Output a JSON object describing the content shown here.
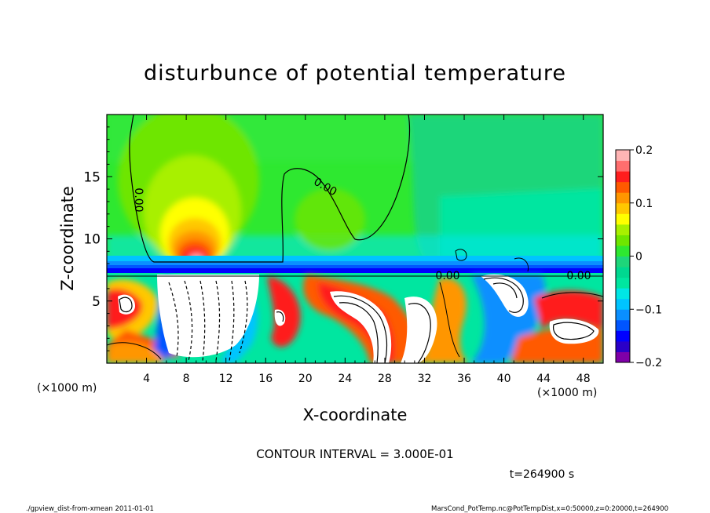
{
  "chart_data": {
    "type": "heatmap",
    "title": "disturbunce of potential temperature",
    "xlabel": "X-coordinate",
    "ylabel": "Z-coordinate",
    "x_unit_left": "(×1000 m)",
    "x_unit_right": "(×1000 m)",
    "xlim": [
      0,
      50
    ],
    "ylim": [
      0,
      20
    ],
    "x_ticks": [
      4,
      8,
      12,
      16,
      20,
      24,
      28,
      32,
      36,
      40,
      44,
      48
    ],
    "y_ticks": [
      5,
      10,
      15
    ],
    "colorbar": {
      "ticks": [
        -0.2,
        -0.1,
        0,
        0.1,
        0.2
      ],
      "tick_labels": [
        "−0.2",
        "−0.1",
        "0",
        "0.1",
        "0.2"
      ],
      "range": [
        -0.2,
        0.2
      ],
      "colors": [
        "#7f00a8",
        "#2a00c8",
        "#0000ff",
        "#0055ff",
        "#0a8fff",
        "#00c4ff",
        "#00e6e6",
        "#00e6a0",
        "#00d890",
        "#1ed67a",
        "#2ee830",
        "#6ee600",
        "#a8f000",
        "#ffff00",
        "#ffc800",
        "#ff9600",
        "#ff5a00",
        "#ff1e1e",
        "#ff6e6e",
        "#ffb4b4"
      ]
    },
    "contour_labels": [
      {
        "text": "0.00",
        "x": 3.0,
        "z": 13.0,
        "rotate": 90
      },
      {
        "text": "0.00",
        "x": 23.0,
        "z": 14.5,
        "rotate": 30
      },
      {
        "text": "0.00",
        "x": 34.6,
        "z": 7.2,
        "rotate": 0
      },
      {
        "text": "0.00",
        "x": 47.2,
        "z": 7.2,
        "rotate": 0
      }
    ],
    "contour_interval": "CONTOUR INTERVAL = 3.000E-01",
    "time_label": "t=264900 s"
  },
  "footer": {
    "left": "./gpview_dist-from-xmean  2011-01-01",
    "right": "MarsCond_PotTemp.nc@PotTempDist,x=0:50000,z=0:20000,t=264900"
  }
}
